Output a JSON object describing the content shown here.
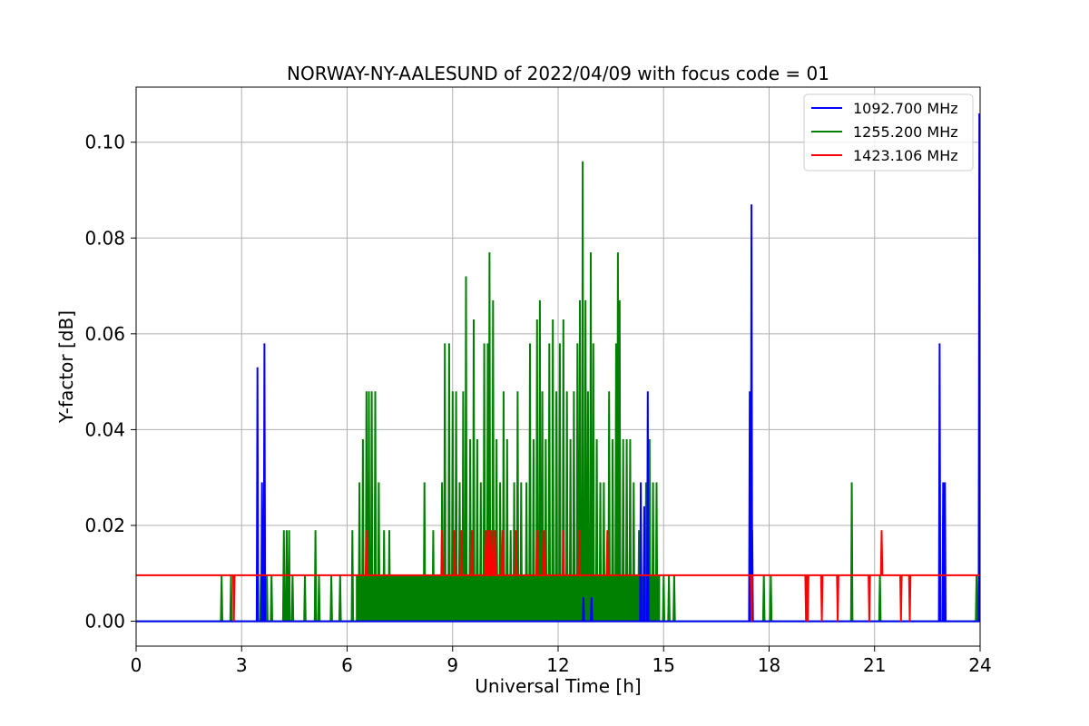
{
  "chart_data": {
    "type": "line",
    "title": "NORWAY-NY-AALESUND of 2022/04/09 with focus code = 01",
    "xlabel": "Universal Time [h]",
    "ylabel": "Y-factor [dB]",
    "xlim": [
      0,
      24
    ],
    "ylim": [
      -0.0052,
      0.1115
    ],
    "xticks": [
      0,
      3,
      6,
      9,
      12,
      15,
      18,
      21,
      24
    ],
    "yticks": [
      0.0,
      0.02,
      0.04,
      0.06,
      0.08,
      0.1
    ],
    "ytick_labels": [
      "0.00",
      "0.02",
      "0.04",
      "0.06",
      "0.08",
      "0.10"
    ],
    "grid": true,
    "legend_position": "top-right",
    "series": [
      {
        "name": "1092.700 MHz",
        "color": "#0000ff",
        "baseline": 0.0,
        "spikes": [
          {
            "x": 3.45,
            "y": 0.053
          },
          {
            "x": 3.58,
            "y": 0.029
          },
          {
            "x": 3.65,
            "y": 0.058
          },
          {
            "x": 12.72,
            "y": 0.005
          },
          {
            "x": 12.95,
            "y": 0.005
          },
          {
            "x": 14.35,
            "y": 0.029
          },
          {
            "x": 14.45,
            "y": 0.024
          },
          {
            "x": 14.55,
            "y": 0.048
          },
          {
            "x": 17.45,
            "y": 0.048
          },
          {
            "x": 17.5,
            "y": 0.087
          },
          {
            "x": 17.52,
            "y": 0.019
          },
          {
            "x": 22.85,
            "y": 0.058
          },
          {
            "x": 22.95,
            "y": 0.029
          },
          {
            "x": 23.0,
            "y": 0.029
          },
          {
            "x": 23.98,
            "y": 0.106
          }
        ]
      },
      {
        "name": "1255.200 MHz",
        "color": "#008000",
        "baseline": 0.0,
        "spikes": [
          {
            "x": 2.43,
            "y": 0.0096
          },
          {
            "x": 2.7,
            "y": 0.0096
          },
          {
            "x": 3.55,
            "y": 0.0096
          },
          {
            "x": 3.72,
            "y": 0.0096
          },
          {
            "x": 3.85,
            "y": 0.0096
          },
          {
            "x": 4.2,
            "y": 0.019
          },
          {
            "x": 4.28,
            "y": 0.019
          },
          {
            "x": 4.35,
            "y": 0.019
          },
          {
            "x": 4.45,
            "y": 0.0096
          },
          {
            "x": 4.8,
            "y": 0.0096
          },
          {
            "x": 5.1,
            "y": 0.019
          },
          {
            "x": 5.2,
            "y": 0.0096
          },
          {
            "x": 5.55,
            "y": 0.0096
          },
          {
            "x": 5.8,
            "y": 0.0096
          },
          {
            "x": 6.15,
            "y": 0.019
          },
          {
            "x": 6.35,
            "y": 0.029
          },
          {
            "x": 6.45,
            "y": 0.038
          },
          {
            "x": 6.55,
            "y": 0.048
          },
          {
            "x": 6.62,
            "y": 0.048
          },
          {
            "x": 6.7,
            "y": 0.048
          },
          {
            "x": 6.8,
            "y": 0.048
          },
          {
            "x": 6.9,
            "y": 0.029
          },
          {
            "x": 7.05,
            "y": 0.019
          },
          {
            "x": 7.2,
            "y": 0.019
          },
          {
            "x": 7.4,
            "y": 0.0096
          },
          {
            "x": 7.6,
            "y": 0.0096
          },
          {
            "x": 8.2,
            "y": 0.029
          },
          {
            "x": 8.45,
            "y": 0.019
          },
          {
            "x": 8.7,
            "y": 0.029
          },
          {
            "x": 8.78,
            "y": 0.058
          },
          {
            "x": 8.9,
            "y": 0.058
          },
          {
            "x": 9.0,
            "y": 0.048
          },
          {
            "x": 9.1,
            "y": 0.048
          },
          {
            "x": 9.2,
            "y": 0.029
          },
          {
            "x": 9.3,
            "y": 0.048
          },
          {
            "x": 9.38,
            "y": 0.072
          },
          {
            "x": 9.5,
            "y": 0.038
          },
          {
            "x": 9.6,
            "y": 0.063
          },
          {
            "x": 9.7,
            "y": 0.038
          },
          {
            "x": 9.8,
            "y": 0.029
          },
          {
            "x": 9.9,
            "y": 0.058
          },
          {
            "x": 10.0,
            "y": 0.058
          },
          {
            "x": 10.05,
            "y": 0.077
          },
          {
            "x": 10.15,
            "y": 0.067
          },
          {
            "x": 10.25,
            "y": 0.038
          },
          {
            "x": 10.35,
            "y": 0.029
          },
          {
            "x": 10.45,
            "y": 0.048
          },
          {
            "x": 10.55,
            "y": 0.038
          },
          {
            "x": 10.65,
            "y": 0.019
          },
          {
            "x": 10.75,
            "y": 0.029
          },
          {
            "x": 10.85,
            "y": 0.048
          },
          {
            "x": 10.95,
            "y": 0.029
          },
          {
            "x": 11.1,
            "y": 0.029
          },
          {
            "x": 11.2,
            "y": 0.058
          },
          {
            "x": 11.3,
            "y": 0.038
          },
          {
            "x": 11.4,
            "y": 0.063
          },
          {
            "x": 11.48,
            "y": 0.067
          },
          {
            "x": 11.55,
            "y": 0.048
          },
          {
            "x": 11.65,
            "y": 0.038
          },
          {
            "x": 11.75,
            "y": 0.058
          },
          {
            "x": 11.85,
            "y": 0.063
          },
          {
            "x": 11.95,
            "y": 0.048
          },
          {
            "x": 12.05,
            "y": 0.058
          },
          {
            "x": 12.15,
            "y": 0.063
          },
          {
            "x": 12.25,
            "y": 0.048
          },
          {
            "x": 12.35,
            "y": 0.038
          },
          {
            "x": 12.45,
            "y": 0.048
          },
          {
            "x": 12.55,
            "y": 0.058
          },
          {
            "x": 12.62,
            "y": 0.067
          },
          {
            "x": 12.7,
            "y": 0.096
          },
          {
            "x": 12.78,
            "y": 0.067
          },
          {
            "x": 12.85,
            "y": 0.048
          },
          {
            "x": 12.93,
            "y": 0.077
          },
          {
            "x": 13.0,
            "y": 0.058
          },
          {
            "x": 13.1,
            "y": 0.038
          },
          {
            "x": 13.2,
            "y": 0.029
          },
          {
            "x": 13.3,
            "y": 0.029
          },
          {
            "x": 13.45,
            "y": 0.048
          },
          {
            "x": 13.55,
            "y": 0.038
          },
          {
            "x": 13.65,
            "y": 0.058
          },
          {
            "x": 13.7,
            "y": 0.077
          },
          {
            "x": 13.75,
            "y": 0.067
          },
          {
            "x": 13.85,
            "y": 0.038
          },
          {
            "x": 13.95,
            "y": 0.038
          },
          {
            "x": 14.05,
            "y": 0.038
          },
          {
            "x": 14.15,
            "y": 0.029
          },
          {
            "x": 14.3,
            "y": 0.019
          },
          {
            "x": 14.5,
            "y": 0.029
          },
          {
            "x": 14.6,
            "y": 0.038
          },
          {
            "x": 14.7,
            "y": 0.029
          },
          {
            "x": 14.8,
            "y": 0.029
          },
          {
            "x": 15.0,
            "y": 0.0096
          },
          {
            "x": 15.15,
            "y": 0.0096
          },
          {
            "x": 15.3,
            "y": 0.0096
          },
          {
            "x": 17.85,
            "y": 0.0096
          },
          {
            "x": 18.05,
            "y": 0.0096
          },
          {
            "x": 20.35,
            "y": 0.029
          },
          {
            "x": 21.15,
            "y": 0.0096
          },
          {
            "x": 23.9,
            "y": 0.0096
          }
        ],
        "dense_block": {
          "x_start": 6.25,
          "x_end": 14.9,
          "y": 0.0096
        }
      },
      {
        "name": "1423.106 MHz",
        "color": "#ff0000",
        "baseline": 0.0096,
        "spikes": [
          {
            "x": 2.78,
            "y": 0.0
          },
          {
            "x": 6.55,
            "y": 0.019
          },
          {
            "x": 8.7,
            "y": 0.019
          },
          {
            "x": 9.05,
            "y": 0.019
          },
          {
            "x": 9.25,
            "y": 0.019
          },
          {
            "x": 9.55,
            "y": 0.019
          },
          {
            "x": 9.95,
            "y": 0.019
          },
          {
            "x": 10.02,
            "y": 0.019
          },
          {
            "x": 10.1,
            "y": 0.019
          },
          {
            "x": 10.2,
            "y": 0.019
          },
          {
            "x": 10.42,
            "y": 0.019
          },
          {
            "x": 10.8,
            "y": 0.019
          },
          {
            "x": 11.4,
            "y": 0.019
          },
          {
            "x": 11.6,
            "y": 0.019
          },
          {
            "x": 12.15,
            "y": 0.019
          },
          {
            "x": 12.6,
            "y": 0.019
          },
          {
            "x": 13.4,
            "y": 0.019
          },
          {
            "x": 17.5,
            "y": 0.0
          },
          {
            "x": 19.05,
            "y": 0.0
          },
          {
            "x": 19.1,
            "y": 0.0
          },
          {
            "x": 19.5,
            "y": 0.0
          },
          {
            "x": 19.95,
            "y": 0.0
          },
          {
            "x": 20.85,
            "y": 0.0
          },
          {
            "x": 21.2,
            "y": 0.019
          },
          {
            "x": 21.75,
            "y": 0.0
          },
          {
            "x": 22.0,
            "y": 0.0
          }
        ]
      }
    ]
  }
}
